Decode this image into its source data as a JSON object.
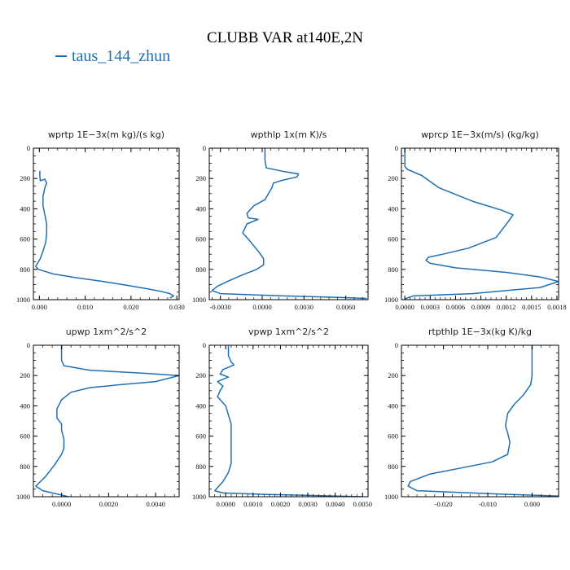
{
  "title": "CLUBB VAR at140E,2N",
  "legend": {
    "label": "taus_144_zhun",
    "color": "#1f6fb4"
  },
  "chart_data": [
    {
      "type": "line",
      "title": "wprtp  1E−3x(m kg)/(s kg)",
      "xlim": [
        -0.0013,
        0.0305
      ],
      "ylim": [
        1000,
        0
      ],
      "xticks": [
        0.0,
        0.01,
        0.02,
        0.03
      ],
      "xtick_labels": [
        "0.000",
        "0.010",
        "0.020",
        "0.030"
      ],
      "yticks": [
        0,
        200,
        400,
        600,
        800,
        1000
      ],
      "ytick_labels": [
        "0",
        "200",
        "400",
        "600",
        "800",
        "1000"
      ],
      "series": [
        {
          "x": [
            0.0001,
            0.0001,
            0.0002,
            0.0012,
            0.0016,
            0.0012,
            0.0008,
            0.0008,
            0.0012,
            0.0016,
            0.0016,
            0.0014,
            0.0008,
            0.0002,
            -0.0004,
            -0.0008,
            -0.0002,
            0.003,
            0.008,
            0.014,
            0.019,
            0.023,
            0.0265,
            0.0285,
            0.0293,
            0.0285
          ],
          "y": [
            150,
            180,
            215,
            205,
            230,
            260,
            320,
            380,
            440,
            500,
            560,
            620,
            680,
            730,
            760,
            780,
            800,
            830,
            855,
            880,
            905,
            925,
            945,
            960,
            975,
            990
          ]
        }
      ]
    },
    {
      "type": "line",
      "title": "wpthlp  1x(m K)/s",
      "xlim": [
        -0.0038,
        0.0076
      ],
      "ylim": [
        1000,
        0
      ],
      "xticks": [
        -0.003,
        0.0,
        0.003,
        0.006
      ],
      "xtick_labels": [
        "-0.0030",
        "0.0000",
        "0.0030",
        "0.0060"
      ],
      "yticks": [
        0,
        200,
        400,
        600,
        800,
        1000
      ],
      "ytick_labels": [
        "0",
        "200",
        "400",
        "600",
        "800",
        "1000"
      ],
      "series": [
        {
          "x": [
            0.0002,
            0.0002,
            0.0003,
            0.0016,
            0.0026,
            0.0025,
            0.0015,
            0.0008,
            0.0007,
            0.0002,
            -0.0006,
            -0.0011,
            -0.001,
            -0.0003,
            -0.0011,
            -0.0014,
            -0.001,
            -0.0002,
            0.0001,
            0.0001,
            -0.0004,
            -0.0015,
            -0.0025,
            -0.0032,
            -0.0036,
            -0.003,
            0.0015,
            0.0055,
            0.0075
          ],
          "y": [
            0,
            80,
            130,
            155,
            170,
            190,
            210,
            230,
            260,
            340,
            380,
            430,
            460,
            470,
            500,
            560,
            600,
            690,
            730,
            770,
            800,
            840,
            880,
            910,
            940,
            960,
            975,
            985,
            992
          ]
        }
      ]
    },
    {
      "type": "line",
      "title": "wprcp  1E−3x(m/s) (kg/kg)",
      "xlim": [
        -4e-05,
        0.00182
      ],
      "ylim": [
        1000,
        0
      ],
      "xticks": [
        0.0,
        0.0003,
        0.0006,
        0.0009,
        0.0012,
        0.0015,
        0.0018
      ],
      "xtick_labels": [
        "0.0000",
        "0.0003",
        "0.0006",
        "0.0009",
        "0.0012",
        "0.0015",
        "0.0018"
      ],
      "yticks": [
        0,
        200,
        400,
        600,
        800,
        1000
      ],
      "ytick_labels": [
        "0",
        "200",
        "400",
        "600",
        "800",
        "1000"
      ],
      "series": [
        {
          "x": [
            0.0,
            0.0,
            3e-05,
            0.0002,
            0.0004,
            0.0008,
            0.00115,
            0.00128,
            0.00123,
            0.00108,
            0.00075,
            0.00045,
            0.00028,
            0.00025,
            0.0003,
            0.0006,
            0.0012,
            0.0016,
            0.00182,
            0.0016,
            0.0008,
            0.0001,
            0.0
          ],
          "y": [
            0,
            120,
            140,
            180,
            260,
            350,
            410,
            440,
            480,
            590,
            660,
            700,
            720,
            740,
            760,
            790,
            820,
            850,
            880,
            920,
            960,
            975,
            995
          ]
        }
      ]
    },
    {
      "type": "line",
      "title": "upwp  1xm^2/s^2",
      "xlim": [
        -0.0012,
        0.005
      ],
      "ylim": [
        1000,
        0
      ],
      "xticks": [
        0.0,
        0.002,
        0.004
      ],
      "xtick_labels": [
        "0.0000",
        "0.0020",
        "0.0040"
      ],
      "yticks": [
        0,
        200,
        400,
        600,
        800,
        1000
      ],
      "ytick_labels": [
        "0",
        "200",
        "400",
        "600",
        "800",
        "1000"
      ],
      "series": [
        {
          "x": [
            0.0,
            0.0,
            0.0001,
            0.0012,
            0.0035,
            0.005,
            0.004,
            0.0025,
            0.0012,
            0.0004,
            0.0,
            -0.0002,
            -0.0002,
            0.0,
            0.0,
            0.0001,
            0.0001,
            0.0,
            -0.0003,
            -0.0007,
            -0.0011,
            -0.0008,
            0.0003
          ],
          "y": [
            0,
            100,
            135,
            165,
            185,
            200,
            240,
            260,
            280,
            310,
            360,
            420,
            480,
            520,
            560,
            620,
            680,
            720,
            790,
            870,
            930,
            960,
            1000
          ]
        }
      ]
    },
    {
      "type": "line",
      "title": "vpwp  1xm^2/s^2",
      "xlim": [
        -0.0006,
        0.0052
      ],
      "ylim": [
        1000,
        0
      ],
      "xticks": [
        0.0,
        0.001,
        0.002,
        0.003,
        0.004,
        0.005
      ],
      "xtick_labels": [
        "0.0000",
        "0.0010",
        "0.0020",
        "0.0030",
        "0.0040",
        "0.0050"
      ],
      "yticks": [
        0,
        200,
        400,
        600,
        800,
        1000
      ],
      "ytick_labels": [
        "0",
        "200",
        "400",
        "600",
        "800",
        "1000"
      ],
      "series": [
        {
          "x": [
            0.0001,
            0.0001,
            0.0002,
            0.0003,
            -0.0001,
            -0.0002,
            0.0001,
            -0.0003,
            -0.0001,
            -0.0002,
            -0.0003,
            0.0,
            0.0001,
            0.0002,
            0.0002,
            0.0002,
            0.0002,
            0.0001,
            -0.0001,
            -0.0004,
            -0.0001,
            0.0015,
            0.0035,
            0.005
          ],
          "y": [
            0,
            70,
            110,
            130,
            160,
            190,
            210,
            240,
            270,
            300,
            340,
            400,
            460,
            520,
            600,
            700,
            780,
            840,
            900,
            960,
            975,
            985,
            993,
            1000
          ]
        }
      ]
    },
    {
      "type": "line",
      "title": "rtpthlp  1E−3x(kg K)/kg",
      "xlim": [
        -0.0295,
        0.006
      ],
      "ylim": [
        1000,
        0
      ],
      "xticks": [
        -0.02,
        -0.01,
        0.0
      ],
      "xtick_labels": [
        "-0.020",
        "-0.010",
        "0.000"
      ],
      "yticks": [
        0,
        200,
        400,
        600,
        800,
        1000
      ],
      "ytick_labels": [
        "0",
        "200",
        "400",
        "600",
        "800",
        "1000"
      ],
      "series": [
        {
          "x": [
            0.0,
            0.0,
            -0.0003,
            -0.002,
            -0.004,
            -0.0055,
            -0.006,
            -0.0055,
            -0.005,
            -0.0055,
            -0.009,
            -0.016,
            -0.023,
            -0.0275,
            -0.028,
            -0.026,
            -0.005,
            0.006
          ],
          "y": [
            0,
            200,
            260,
            330,
            390,
            450,
            530,
            580,
            640,
            720,
            770,
            810,
            850,
            900,
            930,
            960,
            985,
            995
          ]
        }
      ]
    }
  ]
}
